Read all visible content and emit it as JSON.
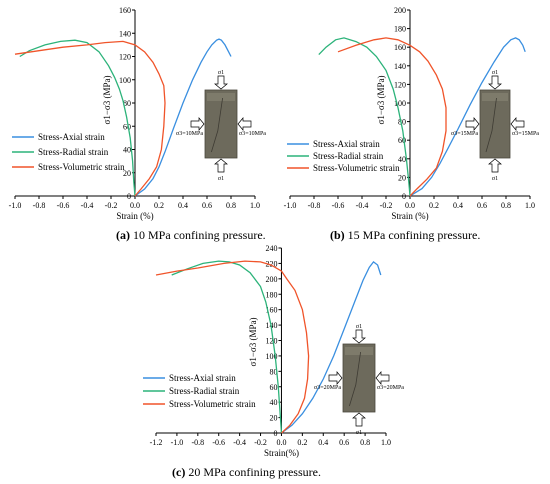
{
  "captions": [
    {
      "tag": "(a)",
      "text": " 10 MPa confining pressure."
    },
    {
      "tag": "(b)",
      "text": " 15 MPa confining pressure."
    },
    {
      "tag": "(c)",
      "text": " 20 MPa confining pressure."
    }
  ],
  "chart_data": [
    {
      "type": "line",
      "xlabel": "Strain (%)",
      "ylabel": "σ1−σ3 (MPa)",
      "xlim": [
        -1.0,
        1.0
      ],
      "ylim": [
        0,
        160
      ],
      "xticks": [
        "-1.0",
        "-0.8",
        "-0.6",
        "-0.4",
        "-0.2",
        "0.0",
        "0.2",
        "0.4",
        "0.6",
        "0.8",
        "1.0"
      ],
      "yticks": [
        "0",
        "20",
        "40",
        "60",
        "80",
        "100",
        "120",
        "140",
        "160"
      ],
      "legend_position": "left",
      "colors": {
        "axial": "#3a8fe0",
        "radial": "#2cb37a",
        "volumetric": "#f0542a"
      },
      "inset_labels": {
        "top": "σ1",
        "bottom": "σ1",
        "left": "σ3=10MPa",
        "right": "σ3=10MPa"
      },
      "series": [
        {
          "name": "Stress-Axial strain",
          "key": "axial",
          "x": [
            0.0,
            0.08,
            0.15,
            0.2,
            0.25,
            0.32,
            0.4,
            0.48,
            0.55,
            0.6,
            0.64,
            0.68,
            0.7,
            0.72,
            0.75,
            0.78,
            0.8
          ],
          "y": [
            0,
            6,
            15,
            25,
            38,
            58,
            80,
            100,
            115,
            124,
            130,
            134,
            135,
            134,
            130,
            124,
            120
          ]
        },
        {
          "name": "Stress-Radial strain",
          "key": "radial",
          "x": [
            0.0,
            -0.01,
            -0.02,
            -0.04,
            -0.07,
            -0.1,
            -0.13,
            -0.17,
            -0.22,
            -0.3,
            -0.4,
            -0.5,
            -0.62,
            -0.75,
            -0.88,
            -0.96
          ],
          "y": [
            0,
            12,
            30,
            50,
            68,
            82,
            92,
            102,
            112,
            124,
            132,
            134,
            133,
            130,
            125,
            120
          ]
        },
        {
          "name": "Stress-Volumetric strain",
          "key": "volumetric",
          "x": [
            0.0,
            0.05,
            0.12,
            0.18,
            0.22,
            0.24,
            0.25,
            0.24,
            0.2,
            0.15,
            0.08,
            0.0,
            -0.1,
            -0.25,
            -0.4,
            -0.6,
            -0.8,
            -1.0
          ],
          "y": [
            0,
            6,
            15,
            25,
            40,
            60,
            80,
            95,
            105,
            115,
            124,
            130,
            133,
            132,
            130,
            128,
            125,
            122
          ]
        }
      ]
    },
    {
      "type": "line",
      "xlabel": "Strain (%)",
      "ylabel": "σ1−σ3 (MPa)",
      "xlim": [
        -1.0,
        1.0
      ],
      "ylim": [
        0,
        200
      ],
      "xticks": [
        "-1.0",
        "-0.8",
        "-0.6",
        "-0.4",
        "-0.2",
        "0.0",
        "0.2",
        "0.4",
        "0.6",
        "0.8",
        "1.0"
      ],
      "yticks": [
        "0",
        "20",
        "40",
        "60",
        "80",
        "100",
        "120",
        "140",
        "160",
        "180",
        "200"
      ],
      "legend_position": "left",
      "colors": {
        "axial": "#3a8fe0",
        "radial": "#2cb37a",
        "volumetric": "#f0542a"
      },
      "inset_labels": {
        "top": "σ1",
        "bottom": "σ1",
        "left": "σ3=15MPa",
        "right": "σ3=15MPa"
      },
      "series": [
        {
          "name": "Stress-Axial strain",
          "key": "axial",
          "x": [
            0.0,
            0.1,
            0.18,
            0.25,
            0.32,
            0.4,
            0.5,
            0.6,
            0.7,
            0.78,
            0.84,
            0.88,
            0.91,
            0.94,
            0.96
          ],
          "y": [
            0,
            8,
            20,
            35,
            52,
            72,
            98,
            122,
            144,
            160,
            168,
            170,
            168,
            162,
            155
          ]
        },
        {
          "name": "Stress-Radial strain",
          "key": "radial",
          "x": [
            0.0,
            -0.01,
            -0.03,
            -0.06,
            -0.1,
            -0.14,
            -0.2,
            -0.28,
            -0.36,
            -0.45,
            -0.55,
            -0.62,
            -0.7,
            -0.76
          ],
          "y": [
            0,
            15,
            40,
            70,
            95,
            115,
            135,
            150,
            160,
            166,
            170,
            168,
            160,
            152
          ]
        },
        {
          "name": "Stress-Volumetric strain",
          "key": "volumetric",
          "x": [
            0.0,
            0.06,
            0.14,
            0.22,
            0.27,
            0.3,
            0.3,
            0.27,
            0.22,
            0.15,
            0.08,
            0.0,
            -0.1,
            -0.2,
            -0.3,
            -0.45,
            -0.6
          ],
          "y": [
            0,
            8,
            18,
            30,
            48,
            70,
            95,
            115,
            130,
            145,
            155,
            162,
            168,
            170,
            168,
            162,
            155
          ]
        }
      ]
    },
    {
      "type": "line",
      "xlabel": "Strain(%)",
      "ylabel": "σ1−σ3 (MPa)",
      "xlim": [
        -1.2,
        1.0
      ],
      "ylim": [
        0,
        240
      ],
      "xticks": [
        "-1.2",
        "-1.0",
        "-0.8",
        "-0.6",
        "-0.4",
        "-0.2",
        "0.0",
        "0.2",
        "0.4",
        "0.6",
        "0.8",
        "1.0"
      ],
      "yticks": [
        "0",
        "20",
        "40",
        "60",
        "80",
        "100",
        "120",
        "140",
        "160",
        "180",
        "200",
        "220",
        "240"
      ],
      "legend_position": "left",
      "colors": {
        "axial": "#3a8fe0",
        "radial": "#2cb37a",
        "volumetric": "#f0542a"
      },
      "inset_labels": {
        "top": "σ1",
        "bottom": "σ1",
        "left": "σ3=20MPa",
        "right": "σ3=20MPa"
      },
      "series": [
        {
          "name": "Stress-Axial strain",
          "key": "axial",
          "x": [
            0.0,
            0.1,
            0.2,
            0.3,
            0.4,
            0.5,
            0.6,
            0.7,
            0.78,
            0.84,
            0.88,
            0.92,
            0.95
          ],
          "y": [
            0,
            10,
            25,
            45,
            70,
            100,
            135,
            170,
            198,
            215,
            222,
            218,
            205
          ]
        },
        {
          "name": "Stress-Radial strain",
          "key": "radial",
          "x": [
            0.0,
            -0.01,
            -0.03,
            -0.06,
            -0.1,
            -0.15,
            -0.2,
            -0.3,
            -0.4,
            -0.5,
            -0.6,
            -0.75,
            -0.9,
            -1.05
          ],
          "y": [
            0,
            20,
            60,
            100,
            140,
            170,
            190,
            208,
            218,
            222,
            223,
            220,
            213,
            205
          ]
        },
        {
          "name": "Stress-Volumetric strain",
          "key": "volumetric",
          "x": [
            0.0,
            0.08,
            0.16,
            0.22,
            0.25,
            0.26,
            0.24,
            0.2,
            0.13,
            0.05,
            0.0,
            -0.1,
            -0.2,
            -0.35,
            -0.55,
            -0.8,
            -1.0,
            -1.2
          ],
          "y": [
            0,
            10,
            25,
            45,
            70,
            100,
            130,
            160,
            185,
            200,
            210,
            218,
            222,
            223,
            220,
            214,
            210,
            205
          ]
        }
      ]
    }
  ]
}
